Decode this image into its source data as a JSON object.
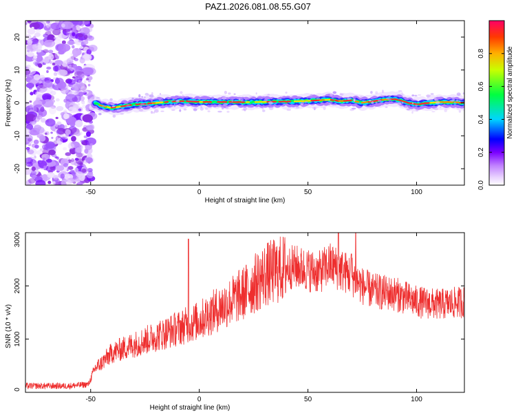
{
  "title": "PAZ1.2026.081.08.55.G07",
  "chart_data": [
    {
      "type": "heatmap",
      "name": "spectrogram",
      "xlabel": "Height of straight line (km)",
      "ylabel": "Frequency (Hz)",
      "xlim": [
        -80,
        122
      ],
      "ylim": [
        -25,
        25
      ],
      "xticks": [
        -50,
        0,
        50,
        100
      ],
      "yticks": [
        -20,
        -10,
        0,
        10,
        20
      ],
      "colorbar": {
        "label": "Normalized spectral amplitude",
        "range": [
          0,
          1
        ],
        "ticks": [
          0.0,
          0.2,
          0.4,
          0.6,
          0.8
        ],
        "colors": [
          "#ffffff",
          "#d8b4ff",
          "#a040ff",
          "#6a00ff",
          "#0000ff",
          "#00e5ff",
          "#00ff3c",
          "#f0ff00",
          "#ff8c00",
          "#ff0040"
        ]
      },
      "noise_region_x": [
        -80,
        -49
      ],
      "signal_track": {
        "x": [
          -48,
          -45,
          -40,
          -35,
          -30,
          -25,
          -20,
          -15,
          -10,
          -5,
          0,
          10,
          20,
          30,
          40,
          50,
          55,
          60,
          65,
          70,
          75,
          80,
          85,
          90,
          95,
          100,
          105,
          110,
          115,
          122
        ],
        "y": [
          0.0,
          -1.0,
          -1.5,
          -1.0,
          -0.5,
          -0.3,
          0.0,
          0.3,
          0.5,
          0.5,
          0.3,
          0.3,
          0.2,
          0.3,
          0.4,
          0.6,
          0.8,
          1.0,
          0.5,
          0.8,
          0.0,
          0.5,
          1.0,
          1.2,
          0.2,
          -0.5,
          0.0,
          0.2,
          0.3,
          0.0
        ]
      }
    },
    {
      "type": "line",
      "name": "snr",
      "xlabel": "Height of straight line (km)",
      "ylabel": "SNR (10 * v/v)",
      "xlim": [
        -80,
        122
      ],
      "ylim": [
        0,
        3000
      ],
      "xticks": [
        -50,
        0,
        50,
        100
      ],
      "yticks": [
        0,
        1000,
        2000,
        3000
      ],
      "color": "#ee2e2e",
      "envelope": {
        "x": [
          -80,
          -60,
          -51,
          -48,
          -45,
          -40,
          -30,
          -20,
          -10,
          0,
          10,
          20,
          30,
          40,
          45,
          50,
          55,
          60,
          65,
          70,
          75,
          80,
          90,
          100,
          110,
          122
        ],
        "y": [
          120,
          120,
          150,
          450,
          550,
          750,
          900,
          1050,
          1200,
          1350,
          1600,
          1850,
          2200,
          2350,
          2350,
          2300,
          2250,
          2400,
          2300,
          2200,
          2000,
          1900,
          1850,
          1700,
          1650,
          1700
        ]
      },
      "spikes": [
        {
          "x": -5,
          "y": 2880
        },
        {
          "x": 64,
          "y": 3000
        },
        {
          "x": 72,
          "y": 3000
        },
        {
          "x": 70,
          "y": 2600
        }
      ]
    }
  ]
}
